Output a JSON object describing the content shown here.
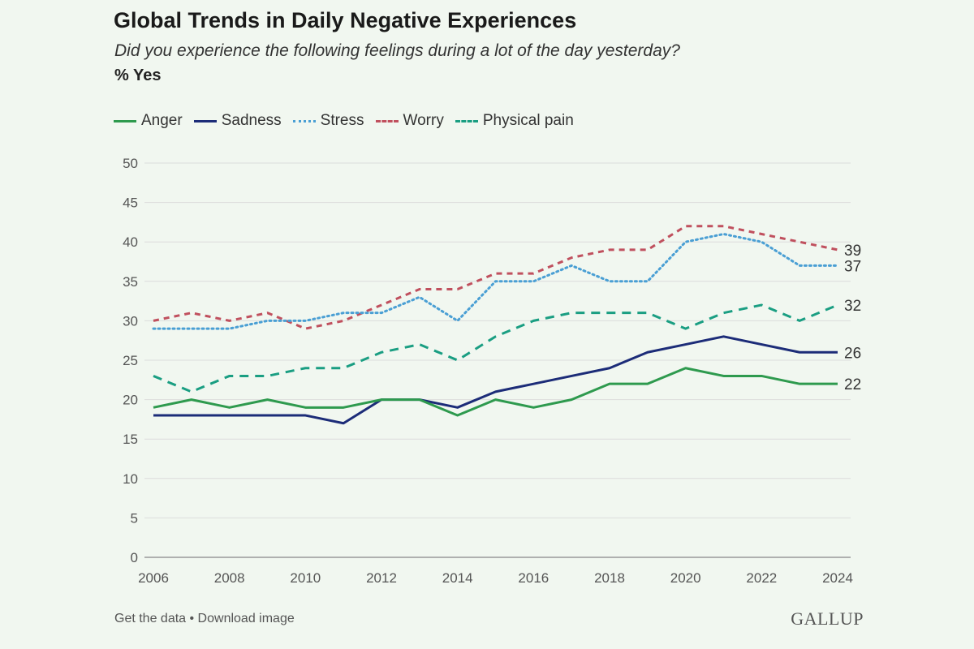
{
  "chart_data": {
    "type": "line",
    "title": "Global Trends in Daily Negative Experiences",
    "subtitle": "Did you experience the following feelings during a lot of the day yesterday?",
    "ylabel": "% Yes",
    "xlabel": "",
    "x": [
      2006,
      2007,
      2008,
      2009,
      2010,
      2011,
      2012,
      2013,
      2014,
      2015,
      2016,
      2017,
      2018,
      2019,
      2020,
      2021,
      2022,
      2023,
      2024
    ],
    "xticks": [
      "2006",
      "2008",
      "2010",
      "2012",
      "2014",
      "2016",
      "2018",
      "2020",
      "2022",
      "2024"
    ],
    "yticks": [
      "0",
      "5",
      "10",
      "15",
      "20",
      "25",
      "30",
      "35",
      "40",
      "45",
      "50"
    ],
    "ylim": [
      0,
      50
    ],
    "xlim": [
      2006,
      2024
    ],
    "grid": "horizontal",
    "legend": "top-left",
    "series": [
      {
        "name": "Anger",
        "color": "#2e9a4e",
        "style": "solid",
        "end_label": "22",
        "values": [
          19,
          20,
          19,
          20,
          19,
          19,
          20,
          20,
          18,
          20,
          19,
          20,
          22,
          22,
          24,
          23,
          23,
          22,
          22
        ]
      },
      {
        "name": "Sadness",
        "color": "#1c2c78",
        "style": "solid",
        "end_label": "26",
        "values": [
          18,
          18,
          18,
          18,
          18,
          17,
          20,
          20,
          19,
          21,
          22,
          23,
          24,
          26,
          27,
          28,
          27,
          26,
          26
        ]
      },
      {
        "name": "Stress",
        "color": "#4a9fd4",
        "style": "dotted",
        "end_label": "37",
        "values": [
          29,
          29,
          29,
          30,
          30,
          31,
          31,
          33,
          30,
          35,
          35,
          37,
          35,
          35,
          40,
          41,
          40,
          37,
          37
        ]
      },
      {
        "name": "Worry",
        "color": "#c0505e",
        "style": "dashed-short",
        "end_label": "39",
        "values": [
          30,
          31,
          30,
          31,
          29,
          30,
          32,
          34,
          34,
          36,
          36,
          38,
          39,
          39,
          42,
          42,
          41,
          40,
          39
        ]
      },
      {
        "name": "Physical pain",
        "color": "#1a9e82",
        "style": "dashed",
        "end_label": "32",
        "values": [
          23,
          21,
          23,
          23,
          24,
          24,
          26,
          27,
          25,
          28,
          30,
          31,
          31,
          31,
          29,
          31,
          32,
          30,
          32
        ]
      }
    ]
  },
  "footer": {
    "links": "Get the data • Download image",
    "logo": "GALLUP"
  }
}
